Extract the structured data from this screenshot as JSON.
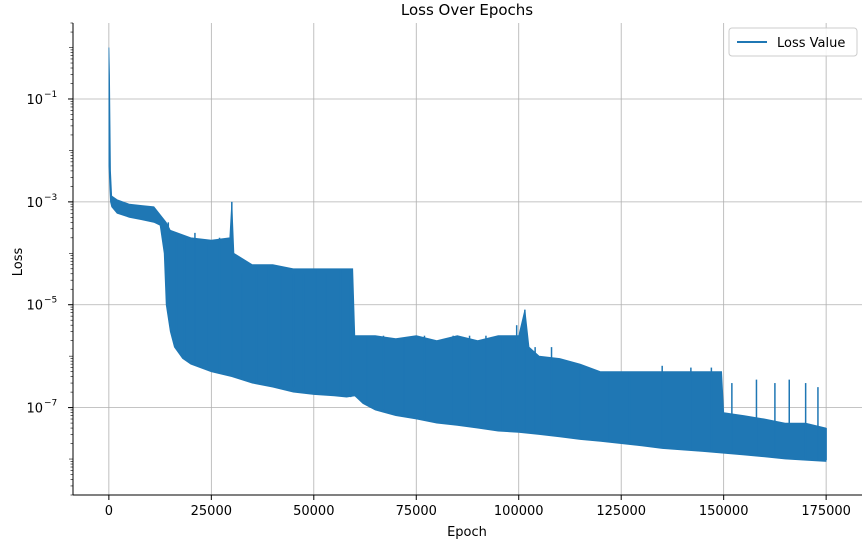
{
  "chart_data": {
    "type": "line",
    "title": "Loss Over Epochs",
    "xlabel": "Epoch",
    "ylabel": "Loss",
    "xlim": [
      -8750,
      183750
    ],
    "ylim": [
      2e-09,
      3.0
    ],
    "yscale": "log",
    "grid": true,
    "legend_position": "top-right",
    "x_ticks": [
      0,
      25000,
      50000,
      75000,
      100000,
      125000,
      150000,
      175000
    ],
    "y_ticks": [
      {
        "value": 0.1,
        "mantissa": "10",
        "exp": "−1"
      },
      {
        "value": 0.001,
        "mantissa": "10",
        "exp": "−3"
      },
      {
        "value": 1e-05,
        "mantissa": "10",
        "exp": "−5"
      },
      {
        "value": 1e-07,
        "mantissa": "10",
        "exp": "−7"
      }
    ],
    "series": [
      {
        "name": "Loss Value",
        "color": "#1f77b4",
        "upper_envelope": [
          [
            0,
            1.0
          ],
          [
            150,
            0.3
          ],
          [
            400,
            0.004
          ],
          [
            700,
            0.0013
          ],
          [
            2000,
            0.0011
          ],
          [
            5000,
            0.0009
          ],
          [
            8000,
            0.00085
          ],
          [
            11000,
            0.0008
          ],
          [
            14000,
            0.0004
          ],
          [
            15000,
            0.00028
          ],
          [
            20000,
            0.0002
          ],
          [
            25000,
            0.00018
          ],
          [
            29500,
            0.0002
          ],
          [
            30000,
            0.001
          ],
          [
            30500,
            0.0001
          ],
          [
            35000,
            6e-05
          ],
          [
            40000,
            6e-05
          ],
          [
            45000,
            5e-05
          ],
          [
            50000,
            5e-05
          ],
          [
            55000,
            5e-05
          ],
          [
            59500,
            5e-05
          ],
          [
            60000,
            2.5e-06
          ],
          [
            65000,
            2.5e-06
          ],
          [
            70000,
            2.2e-06
          ],
          [
            75000,
            2.5e-06
          ],
          [
            80000,
            2e-06
          ],
          [
            85000,
            2.5e-06
          ],
          [
            90000,
            2e-06
          ],
          [
            95000,
            2.5e-06
          ],
          [
            100000,
            2.5e-06
          ],
          [
            101500,
            8e-06
          ],
          [
            102500,
            1.5e-06
          ],
          [
            105000,
            1e-06
          ],
          [
            110000,
            9e-07
          ],
          [
            115000,
            7e-07
          ],
          [
            120000,
            5e-07
          ],
          [
            125000,
            5e-07
          ],
          [
            130000,
            5e-07
          ],
          [
            135000,
            5e-07
          ],
          [
            140000,
            5e-07
          ],
          [
            145000,
            5e-07
          ],
          [
            149500,
            5e-07
          ],
          [
            150000,
            8e-08
          ],
          [
            155000,
            7e-08
          ],
          [
            160000,
            6e-08
          ],
          [
            165000,
            5e-08
          ],
          [
            170000,
            5e-08
          ],
          [
            175000,
            4e-08
          ]
        ],
        "lower_envelope": [
          [
            0,
            0.005
          ],
          [
            400,
            0.001
          ],
          [
            700,
            0.0008
          ],
          [
            2000,
            0.0006
          ],
          [
            5000,
            0.0005
          ],
          [
            8000,
            0.00045
          ],
          [
            11000,
            0.0004
          ],
          [
            12500,
            0.00035
          ],
          [
            13500,
            0.0001
          ],
          [
            14000,
            1e-05
          ],
          [
            15000,
            3e-06
          ],
          [
            16000,
            1.5e-06
          ],
          [
            18000,
            9e-07
          ],
          [
            20000,
            7e-07
          ],
          [
            25000,
            5e-07
          ],
          [
            30000,
            4e-07
          ],
          [
            35000,
            3e-07
          ],
          [
            40000,
            2.5e-07
          ],
          [
            45000,
            2e-07
          ],
          [
            50000,
            1.8e-07
          ],
          [
            55000,
            1.7e-07
          ],
          [
            58000,
            1.6e-07
          ],
          [
            60000,
            1.7e-07
          ],
          [
            62000,
            1.2e-07
          ],
          [
            65000,
            9e-08
          ],
          [
            70000,
            7e-08
          ],
          [
            75000,
            6e-08
          ],
          [
            80000,
            5e-08
          ],
          [
            85000,
            4.5e-08
          ],
          [
            90000,
            4e-08
          ],
          [
            95000,
            3.5e-08
          ],
          [
            100000,
            3.3e-08
          ],
          [
            105000,
            3e-08
          ],
          [
            110000,
            2.7e-08
          ],
          [
            115000,
            2.4e-08
          ],
          [
            120000,
            2.2e-08
          ],
          [
            125000,
            2e-08
          ],
          [
            130000,
            1.8e-08
          ],
          [
            135000,
            1.6e-08
          ],
          [
            140000,
            1.5e-08
          ],
          [
            145000,
            1.4e-08
          ],
          [
            150000,
            1.3e-08
          ],
          [
            155000,
            1.2e-08
          ],
          [
            160000,
            1.1e-08
          ],
          [
            165000,
            1e-08
          ],
          [
            170000,
            9.5e-09
          ],
          [
            175000,
            9e-09
          ]
        ],
        "spikes": [
          [
            14500,
            0.0004
          ],
          [
            16500,
            0.00025
          ],
          [
            18500,
            0.00022
          ],
          [
            21000,
            0.00025
          ],
          [
            24000,
            0.00015
          ],
          [
            27000,
            0.0002
          ],
          [
            30000,
            0.001
          ],
          [
            32500,
            4e-05
          ],
          [
            36000,
            5e-05
          ],
          [
            39000,
            6e-05
          ],
          [
            42000,
            4e-05
          ],
          [
            45000,
            4e-05
          ],
          [
            47500,
            4e-05
          ],
          [
            50500,
            5e-05
          ],
          [
            53000,
            4e-05
          ],
          [
            56500,
            5e-05
          ],
          [
            59000,
            3e-05
          ],
          [
            63000,
            2.5e-06
          ],
          [
            67000,
            2.5e-06
          ],
          [
            72000,
            2.2e-06
          ],
          [
            77000,
            2.5e-06
          ],
          [
            84000,
            2.5e-06
          ],
          [
            88000,
            2.5e-06
          ],
          [
            92000,
            2.5e-06
          ],
          [
            96000,
            2.5e-06
          ],
          [
            99500,
            4e-06
          ],
          [
            101500,
            8e-06
          ],
          [
            104000,
            1.5e-06
          ],
          [
            108000,
            1.5e-06
          ],
          [
            115000,
            6.5e-07
          ],
          [
            122000,
            5e-07
          ],
          [
            127000,
            5e-07
          ],
          [
            135000,
            6.5e-07
          ],
          [
            142000,
            6e-07
          ],
          [
            147000,
            6e-07
          ],
          [
            152000,
            3e-07
          ],
          [
            158000,
            3.5e-07
          ],
          [
            162500,
            3e-07
          ],
          [
            166000,
            3.5e-07
          ],
          [
            170000,
            3e-07
          ],
          [
            173000,
            2.5e-07
          ],
          [
            175000,
            4e-08
          ]
        ]
      }
    ]
  }
}
